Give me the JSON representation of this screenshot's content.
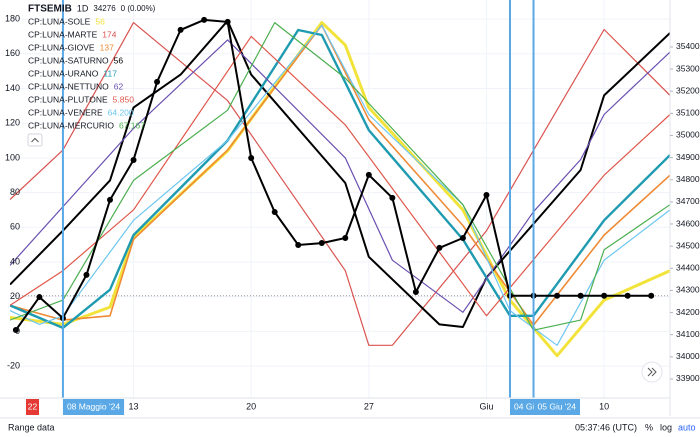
{
  "chart_data": {
    "type": "line",
    "header": {
      "symbol": "FTSEMIB",
      "interval": "1D",
      "last": 34276,
      "change": "0 (0.00%)"
    },
    "xlim": [
      -2.25,
      25.8
    ],
    "xticks": [
      {
        "value": 3,
        "label": "13"
      },
      {
        "value": 8,
        "label": "20"
      },
      {
        "value": 13,
        "label": "27"
      },
      {
        "value": 18,
        "label": "Giu"
      },
      {
        "value": 23,
        "label": "10"
      }
    ],
    "start_label": "22",
    "markers": [
      {
        "value": 0,
        "label": "08 Maggio '24"
      },
      {
        "value": 19,
        "label": "04 Giu '24"
      },
      {
        "value": 20,
        "label": "05 Giu '24"
      }
    ],
    "ylim": [
      -38.4,
      191
    ],
    "yticks": [
      -20,
      0,
      20,
      40,
      60,
      80,
      100,
      120,
      140,
      160,
      180
    ],
    "y2lim": [
      33814,
      35612
    ],
    "y2ticks": [
      33900,
      34000,
      34100,
      34200,
      34300,
      34400,
      34500,
      34600,
      34700,
      34800,
      34900,
      35000,
      35100,
      35200,
      35300,
      35400
    ],
    "grid": true,
    "series": [
      {
        "name": "CP:LUNA-SOLE",
        "last_label": "56",
        "color": "#f2e33a",
        "width": 3,
        "x": [
          -2.25,
          0,
          2,
          3,
          7,
          11,
          12,
          13,
          17,
          19,
          21,
          23,
          25.8
        ],
        "values": [
          8,
          4,
          14,
          54,
          104,
          178,
          165,
          129,
          70,
          18,
          -14,
          18,
          35
        ]
      },
      {
        "name": "CP:LUNA-MARTE",
        "last_label": "174",
        "color": "#d9534f",
        "width": 1.2,
        "x": [
          -2.25,
          0,
          3,
          7,
          12,
          13,
          14,
          18,
          23,
          25.8
        ],
        "values": [
          76,
          104.5,
          178,
          133,
          35,
          -8,
          -8,
          58,
          174,
          136
        ]
      },
      {
        "name": "CP:LUNA-GIOVE",
        "last_label": "137",
        "color": "#ef8a35",
        "width": 1.6,
        "x": [
          -2.25,
          0,
          2,
          3,
          7,
          11,
          13,
          17,
          20,
          23,
          25.8
        ],
        "values": [
          15,
          6.5,
          9,
          53,
          104.5,
          176.5,
          122,
          61,
          3.6,
          55.5,
          90
        ]
      },
      {
        "name": "CP:LUNA-SATURNO",
        "last_label": "56",
        "color": "#000000",
        "width": 2,
        "x": [
          -2.25,
          0,
          2,
          3,
          5,
          7,
          8,
          12,
          13,
          16,
          17,
          18,
          22,
          23,
          25.8
        ],
        "values": [
          27,
          58,
          87,
          129,
          148,
          179,
          148,
          85.5,
          43,
          4,
          2.5,
          31,
          93,
          136,
          172
        ]
      },
      {
        "name": "CP:LUNA-URANO",
        "last_label": "117",
        "color": "#1e9bb0",
        "width": 2.4,
        "x": [
          -2.25,
          0,
          2,
          3,
          7,
          10,
          11,
          13,
          17,
          19,
          20,
          23,
          25.8
        ],
        "values": [
          15,
          2,
          24,
          55.5,
          110,
          173.7,
          170.8,
          116,
          53,
          9,
          9,
          64,
          101.6
        ]
      },
      {
        "name": "CP:LUNA-NETTUNO",
        "last_label": "62",
        "color": "#6a4fb0",
        "width": 1.2,
        "x": [
          -2.25,
          3,
          7,
          12,
          14,
          17,
          20,
          22,
          23,
          25.8
        ],
        "values": [
          38,
          117,
          168,
          100,
          41,
          11,
          69,
          99,
          125,
          161
        ]
      },
      {
        "name": "CP:LUNA-PLUTONE",
        "last_label": "5.850",
        "color": "#e0574a",
        "width": 1.2,
        "x": [
          -2.25,
          0,
          3,
          8,
          12,
          18,
          23,
          25.8
        ],
        "values": [
          15,
          35,
          70,
          170,
          119,
          9,
          90,
          125
        ]
      },
      {
        "name": "CP:LUNA-VENERE",
        "last_label": "64.200",
        "color": "#6ec6f0",
        "width": 1.2,
        "x": [
          -2.25,
          -1,
          0,
          3,
          7,
          11,
          13,
          17,
          19,
          21,
          23,
          25.8
        ],
        "values": [
          12,
          4,
          9,
          64,
          110,
          176.5,
          125,
          73,
          12,
          -8,
          41,
          70
        ]
      },
      {
        "name": "CP:LUNA-MERCURIO",
        "last_label": "67.167",
        "color": "#4caf50",
        "width": 1.2,
        "x": [
          -2.25,
          0,
          3,
          7,
          9,
          12,
          17,
          20,
          22,
          23,
          25.8
        ],
        "values": [
          6.5,
          18,
          87,
          127.5,
          178,
          146,
          73,
          0.7,
          6.5,
          47,
          73
        ]
      }
    ],
    "price_series": {
      "axis": "y2",
      "color": "#000000",
      "x": [
        -2,
        -1,
        0,
        1,
        2,
        3,
        4,
        5,
        6,
        7,
        8,
        9,
        10,
        11,
        12,
        13,
        14,
        15,
        16,
        17,
        18,
        19,
        20,
        21,
        22,
        23,
        24,
        25
      ],
      "values": [
        34121,
        34270,
        34175,
        34370,
        34709,
        34889,
        35242,
        35477,
        35522,
        35513,
        34898,
        34654,
        34505,
        34514,
        34537,
        34822,
        34718,
        34293,
        34492,
        34537,
        34731,
        34276,
        34276,
        34276,
        34276,
        34276,
        34276,
        34276
      ]
    },
    "toolbar": {
      "range": "Range data",
      "time": "05:37:46 (UTC)",
      "percent": "%",
      "log": "log",
      "auto": "auto"
    }
  }
}
